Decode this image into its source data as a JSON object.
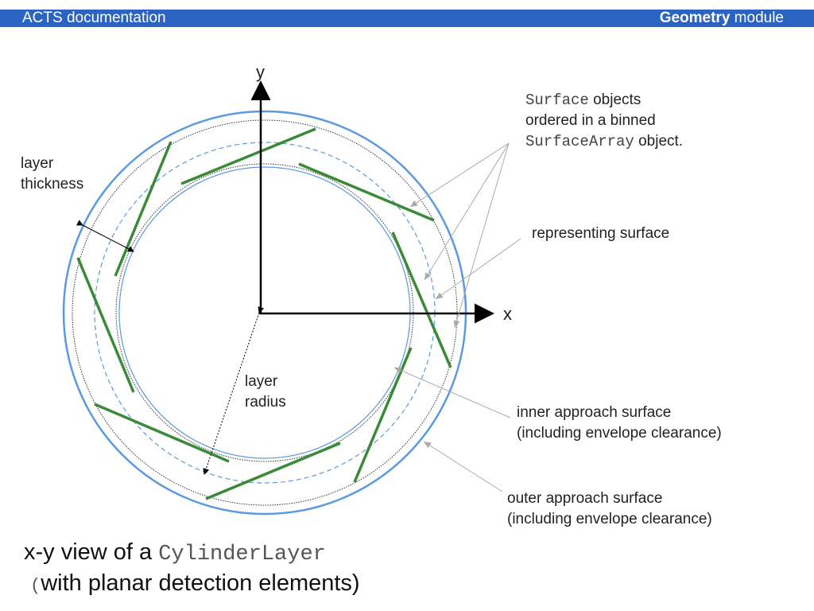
{
  "header": {
    "left_title": "ACTS documentation",
    "right_bold": "Geometry",
    "right_rest": " module"
  },
  "axes": {
    "y": "y",
    "x": "x"
  },
  "labels": {
    "layer_thickness_line1": "layer",
    "layer_thickness_line2": "thickness",
    "layer_radius_line1": "layer",
    "layer_radius_line2": "radius",
    "surface_objects_code1": "Surface",
    "surface_objects_text1": " objects",
    "surface_objects_line2": "ordered in a binned",
    "surface_objects_code3": "SurfaceArray",
    "surface_objects_text3": " object.",
    "representing_surface": "representing surface",
    "inner_approach_line1": "inner approach surface",
    "inner_approach_line2": "(including envelope clearance)",
    "outer_approach_line1": "outer approach surface",
    "outer_approach_line2": "(including envelope clearance)"
  },
  "caption": {
    "line1_prefix": "x-y view of a ",
    "line1_code": "CylinderLayer",
    "line2_paren": "(",
    "line2_text": "with planar detection elements)"
  },
  "colors": {
    "header_bg": "#2a63c2",
    "outer_circle": "#5b9ae0",
    "inner_circle": "#5b9ae0",
    "dashed_circle": "#5b9ae0",
    "sensor": "#3a8a3a",
    "dotted_circle": "#333333",
    "pointer": "#aaaaaa"
  }
}
